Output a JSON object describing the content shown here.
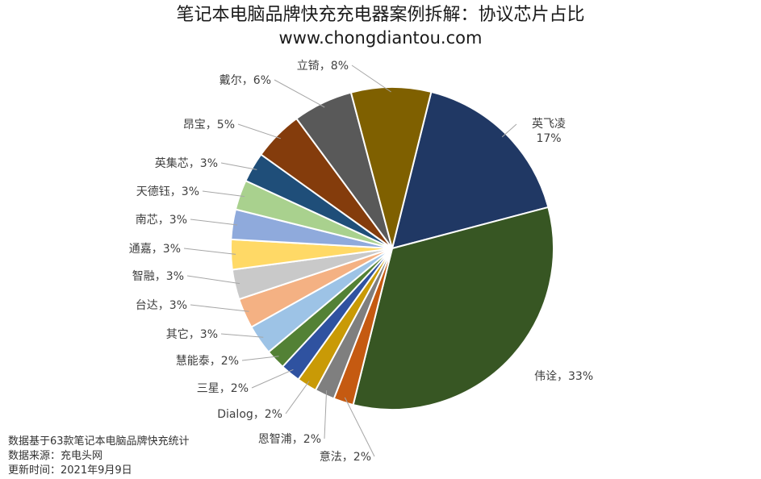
{
  "title": "笔记本电脑品牌快充充电器案例拆解：协议芯片占比",
  "subtitle": "www.chongdiantou.com",
  "notes": [
    "数据基于63款笔记本电脑品牌快充统计",
    "数据来源：充电头网",
    "更新时间：2021年9月9日"
  ],
  "chart_data": {
    "type": "pie",
    "title": "笔记本电脑品牌快充充电器案例拆解：协议芯片占比",
    "subtitle": "www.chongdiantou.com",
    "start_angle_deg": 14,
    "direction": "clockwise",
    "slices": [
      {
        "name": "英飞凌",
        "value": 17,
        "label": "17%",
        "color": "#203864"
      },
      {
        "name": "伟诠",
        "value": 33,
        "label": "33%",
        "color": "#375623"
      },
      {
        "name": "意法",
        "value": 2,
        "label": "2%",
        "color": "#C55A11"
      },
      {
        "name": "恩智浦",
        "value": 2,
        "label": "2%",
        "color": "#7F7F7F"
      },
      {
        "name": "Dialog",
        "value": 2,
        "label": "2%",
        "color": "#C99A06"
      },
      {
        "name": "三星",
        "value": 2,
        "label": "2%",
        "color": "#2F52A0"
      },
      {
        "name": "慧能泰",
        "value": 2,
        "label": "2%",
        "color": "#538135"
      },
      {
        "name": "其它",
        "value": 3,
        "label": "3%",
        "color": "#9DC3E6"
      },
      {
        "name": "台达",
        "value": 3,
        "label": "3%",
        "color": "#F4B183"
      },
      {
        "name": "智融",
        "value": 3,
        "label": "3%",
        "color": "#C9C9C9"
      },
      {
        "name": "通嘉",
        "value": 3,
        "label": "3%",
        "color": "#FFD966"
      },
      {
        "name": "南芯",
        "value": 3,
        "label": "3%",
        "color": "#8FAADC"
      },
      {
        "name": "天德钰",
        "value": 3,
        "label": "3%",
        "color": "#A9D18E"
      },
      {
        "name": "英集芯",
        "value": 3,
        "label": "3%",
        "color": "#1F4E79"
      },
      {
        "name": "昂宝",
        "value": 5,
        "label": "5%",
        "color": "#843C0C"
      },
      {
        "name": "戴尔",
        "value": 6,
        "label": "6%",
        "color": "#595959"
      },
      {
        "name": "立锜",
        "value": 8,
        "label": "8%",
        "color": "#7F6000"
      }
    ]
  }
}
